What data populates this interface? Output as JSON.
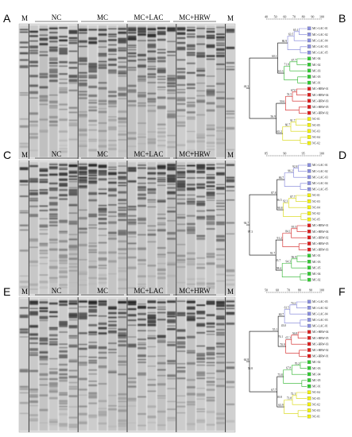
{
  "panels": [
    {
      "gel_label": "A",
      "tree_label": "B",
      "tree": {
        "scale_ticks": [
          "40",
          "50",
          "60",
          "70",
          "80",
          "90",
          "100"
        ],
        "clusters": [
          {
            "color": "#7b7ed8",
            "marker": "#8a8fe0",
            "leaves": [
              "MC+LAC-01",
              "MC+LAC-02",
              "MC+LAC-04",
              "MC+LAC-03",
              "MC+LAC-05"
            ]
          },
          {
            "color": "#27b327",
            "marker": "#33cc33",
            "leaves": [
              "MC-04",
              "MC-02",
              "MC-03",
              "MC-05",
              "MC-01"
            ]
          },
          {
            "color": "#d11a1a",
            "marker": "#e02020",
            "leaves": [
              "MC+HRW-01",
              "MC+HRW-04",
              "MC+HRW-03",
              "MC+HRW-05",
              "MC+HRW-02"
            ]
          },
          {
            "color": "#d6d600",
            "marker": "#f2f200",
            "leaves": [
              "NC-01",
              "NC-05",
              "NC-03",
              "NC-04",
              "NC-02"
            ]
          }
        ],
        "node_values": [
          "65.1",
          "63.5",
          "86.9",
          "67.7",
          "71.8",
          "63.3",
          "67.0",
          "78.5",
          "50.6",
          "91.7",
          "60.7",
          "65.2",
          "60.1",
          "56.9",
          "44.3"
        ]
      }
    },
    {
      "gel_label": "C",
      "tree_label": "D",
      "tree": {
        "scale_ticks": [
          "85",
          "90",
          "95",
          "100"
        ],
        "clusters": [
          {
            "color": "#7b7ed8",
            "marker": "#8a8fe0",
            "leaves": [
              "MC+LAC-01",
              "MC+LAC-02",
              "MC+LAC-03",
              "MC+LAC-04",
              "MC+LAC-05"
            ]
          },
          {
            "color": "#d6d600",
            "marker": "#f2f200",
            "leaves": [
              "NC-01",
              "NC-03",
              "NC-04",
              "NC-02",
              "NC-05"
            ]
          },
          {
            "color": "#d11a1a",
            "marker": "#e02020",
            "leaves": [
              "MC+HRW-01",
              "MC+HRW-04",
              "MC+HRW-02",
              "MC+HRW-05",
              "MC+HRW-03"
            ]
          },
          {
            "color": "#27b327",
            "marker": "#33cc33",
            "leaves": [
              "MC-01",
              "MC-03",
              "MC-05",
              "MC-04",
              "MC-02"
            ]
          }
        ],
        "node_values": [
          "92.8",
          "96.2",
          "86.7",
          "87.7",
          "92.3",
          "90.8",
          "95.5",
          "84.1",
          "91.2",
          "96.9",
          "94.3",
          "98.4",
          "87.8",
          "91.7",
          "94.7",
          "96.5",
          "83.7",
          "97.3"
        ]
      }
    },
    {
      "gel_label": "E",
      "tree_label": "F",
      "tree": {
        "scale_ticks": [
          "50",
          "60",
          "70",
          "80",
          "90",
          "100"
        ],
        "clusters": [
          {
            "color": "#7b7ed8",
            "marker": "#8a8fe0",
            "leaves": [
              "MC+LAC-05",
              "MC+LAC-02",
              "MC+LAC-04",
              "MC+LAC-03",
              "MC+LAC-01"
            ]
          },
          {
            "color": "#d11a1a",
            "marker": "#e02020",
            "leaves": [
              "MC+HRW-04",
              "MC+HRW-05",
              "MC+HRW-03",
              "MC+HRW-02",
              "MC+HRW-01"
            ]
          },
          {
            "color": "#27b327",
            "marker": "#33cc33",
            "leaves": [
              "MC-02",
              "MC-03",
              "MC-04",
              "MC-05",
              "MC-01"
            ]
          },
          {
            "color": "#d6d600",
            "marker": "#f2f200",
            "leaves": [
              "NC-04",
              "NC-05",
              "NC-02",
              "NC-03",
              "NC-01"
            ]
          }
        ],
        "node_values": [
          "74.2",
          "61.5",
          "60.7",
          "56.8",
          "65.3",
          "70.9",
          "70.2",
          "67.8",
          "75.8",
          "72.1",
          "73.8",
          "63.9",
          "55.1",
          "67.7",
          "64.8",
          "76.1",
          "58.8",
          "50.8",
          "43.0"
        ]
      }
    }
  ],
  "gel": {
    "marker_label": "M",
    "groups": [
      "NC",
      "MC",
      "MC+LAC",
      "MC+HRW"
    ]
  }
}
